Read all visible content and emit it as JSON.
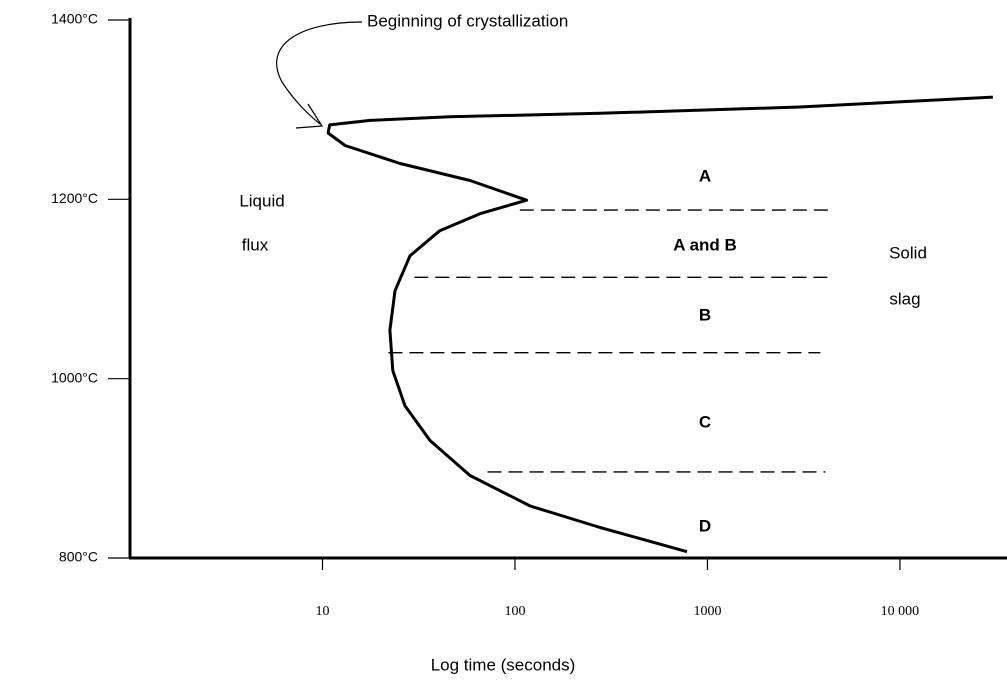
{
  "chart_data": {
    "type": "line",
    "xlabel": "Log time (seconds)",
    "xscale": "log",
    "xlim": [
      1,
      36000
    ],
    "ylim": [
      800,
      1400
    ],
    "xticks": [
      10,
      100,
      1000,
      {
        "value": 10000,
        "label": "10 000"
      }
    ],
    "yticks": [
      {
        "value": 800,
        "label": "800°C"
      },
      {
        "value": 1000,
        "label": "1000°C"
      },
      {
        "value": 1200,
        "label": "1200°C"
      },
      {
        "value": 1400,
        "label": "1400°C"
      }
    ],
    "series": [
      {
        "color": "#000000",
        "x": [
          30400,
          3020,
          277,
          46,
          17.7,
          10.9,
          10.7,
          13.1,
          25.3,
          58.4,
          115,
          65.8,
          40.7,
          28.5,
          23.8,
          22.4,
          23.2,
          26.8,
          36.2,
          58.4,
          120,
          277,
          783
        ],
        "values": [
          1314,
          1303,
          1296,
          1292,
          1288,
          1283,
          1274,
          1260,
          1240,
          1221,
          1199,
          1184,
          1165,
          1137,
          1098,
          1054,
          1009,
          970,
          931,
          892,
          858,
          834,
          807
        ]
      }
    ],
    "boundaries": [
      {
        "y": 1188,
        "x": [
          106,
          4300
        ]
      },
      {
        "y": 1113,
        "x": [
          30,
          4300
        ]
      },
      {
        "y": 1029,
        "x": [
          22,
          3860
        ]
      },
      {
        "y": 896,
        "x": [
          72,
          4100
        ]
      }
    ],
    "annotations": [
      "Beginning of crystallization",
      "Liquid",
      "flux",
      "Solid",
      "slag",
      "A",
      "A and B",
      "B",
      "C",
      "D"
    ]
  }
}
